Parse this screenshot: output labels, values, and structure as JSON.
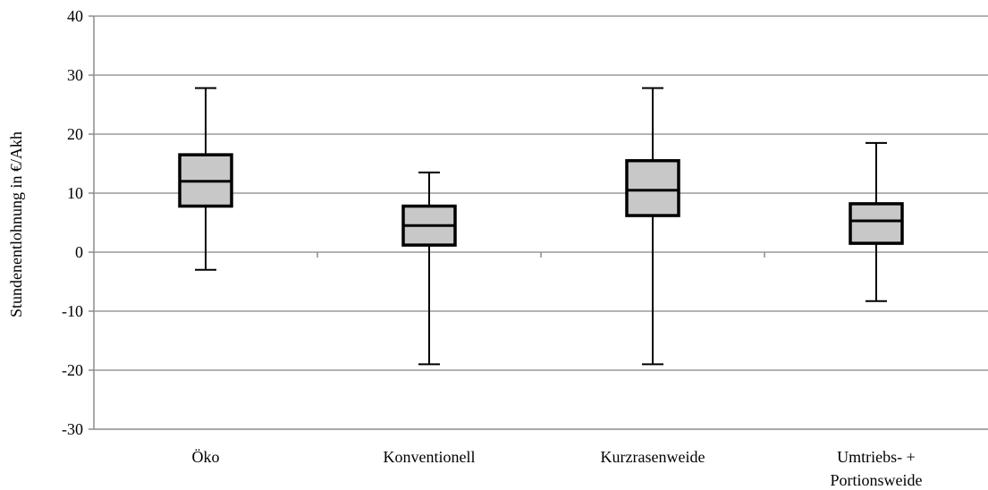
{
  "chart_data": {
    "type": "boxplot",
    "title": "",
    "ylabel": "Stundenentlohnung in  €/Akh",
    "xlabel": "",
    "ylim": [
      -30,
      40
    ],
    "yticks": [
      {
        "value": -30,
        "label": "-30"
      },
      {
        "value": -20,
        "label": "-20"
      },
      {
        "value": -10,
        "label": "-10"
      },
      {
        "value": 0,
        "label": "0"
      },
      {
        "value": 10,
        "label": "10"
      },
      {
        "value": 20,
        "label": "20"
      },
      {
        "value": 30,
        "label": "30"
      },
      {
        "value": 40,
        "label": "40"
      }
    ],
    "grid": true,
    "categories": [
      {
        "label": [
          "Öko"
        ],
        "min": -3,
        "q1": 7.8,
        "median": 12,
        "q3": 16.5,
        "max": 27.8
      },
      {
        "label": [
          "Konventionell"
        ],
        "min": -19,
        "q1": 1.2,
        "median": 4.5,
        "q3": 7.8,
        "max": 13.5
      },
      {
        "label": [
          "Kurzrasenweide"
        ],
        "min": -19,
        "q1": 6.2,
        "median": 10.5,
        "q3": 15.5,
        "max": 27.8
      },
      {
        "label": [
          "Umtriebs- +",
          "Portionsweide"
        ],
        "min": -8.3,
        "q1": 1.5,
        "median": 5.3,
        "q3": 8.2,
        "max": 18.5
      }
    ],
    "colors": {
      "box_fill": "#c8c8c8",
      "stroke": "#000000",
      "grid": "#9a9a9a",
      "axis": "#8c8c8c"
    }
  }
}
